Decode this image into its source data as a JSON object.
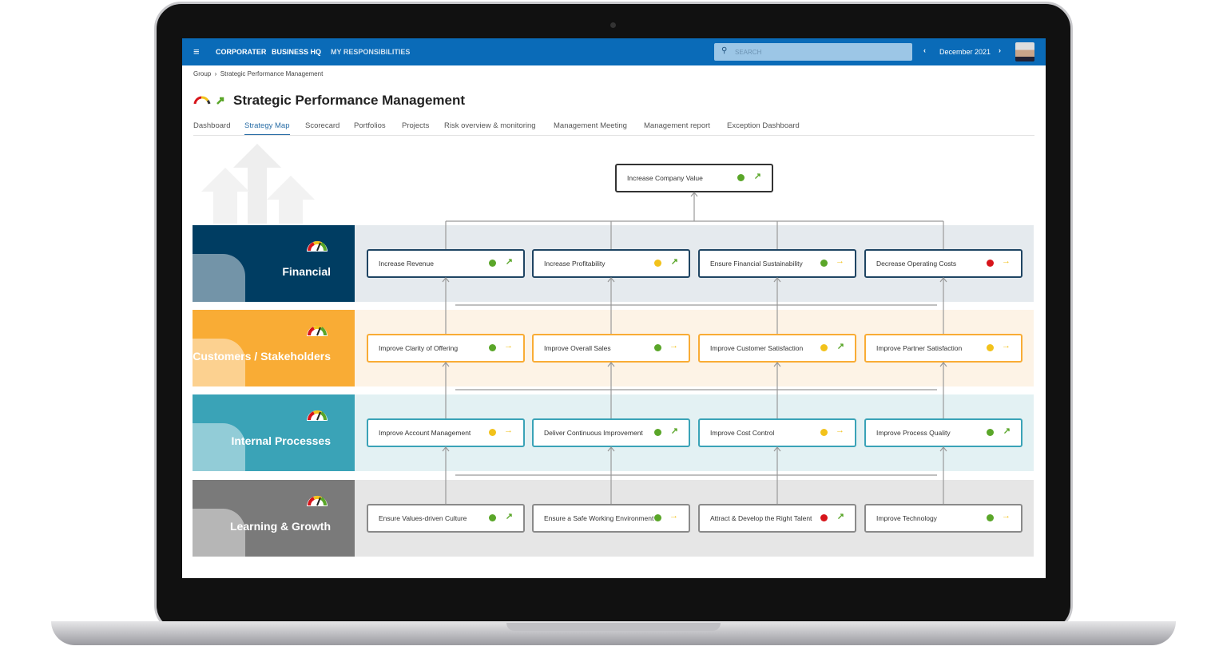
{
  "topbar": {
    "logo": "CORPORATER",
    "nav": [
      "BUSINESS HQ",
      "MY RESPONSIBILITIES"
    ],
    "search_placeholder": "SEARCH",
    "period": "December 2021",
    "prev": "‹",
    "next": "›"
  },
  "breadcrumb": [
    "Group",
    "Strategic Performance Management"
  ],
  "page": {
    "title": "Strategic Performance Management"
  },
  "tabs": [
    "Dashboard",
    "Strategy Map",
    "Scorecard",
    "Portfolios",
    "Projects",
    "Risk overview & monitoring",
    "Management Meeting",
    "Management report",
    "Exception Dashboard"
  ],
  "active_tab": "Strategy Map",
  "colors": {
    "green": "#5aa629",
    "yellow": "#f2c21b",
    "red": "#d7141a",
    "brand": "#0a6bb8"
  },
  "goal": {
    "label": "Increase Company Value",
    "status": "green",
    "trend": "up"
  },
  "perspectives": [
    {
      "name": "Financial",
      "color": "#003d62",
      "band": "#e5eaee",
      "border": "#1f4563",
      "objectives": [
        {
          "label": "Increase Revenue",
          "status": "green",
          "trend": "up"
        },
        {
          "label": "Increase Profitability",
          "status": "yellow",
          "trend": "up"
        },
        {
          "label": "Ensure Financial Sustainability",
          "status": "green",
          "trend": "right"
        },
        {
          "label": "Decrease Operating Costs",
          "status": "red",
          "trend": "right"
        }
      ]
    },
    {
      "name": "Customers / Stakeholders",
      "color": "#f9ac35",
      "band": "#fdf3e6",
      "border": "#f9ac35",
      "objectives": [
        {
          "label": "Improve Clarity of Offering",
          "status": "green",
          "trend": "right"
        },
        {
          "label": "Improve Overall Sales",
          "status": "green",
          "trend": "right"
        },
        {
          "label": "Improve Customer Satisfaction",
          "status": "yellow",
          "trend": "up"
        },
        {
          "label": "Improve Partner Satisfaction",
          "status": "yellow",
          "trend": "right"
        }
      ]
    },
    {
      "name": "Internal Processes",
      "color": "#3aa3b7",
      "band": "#e3f1f3",
      "border": "#3aa3b7",
      "objectives": [
        {
          "label": "Improve Account Management",
          "status": "yellow",
          "trend": "right"
        },
        {
          "label": "Deliver Continuous Improvement",
          "status": "green",
          "trend": "up"
        },
        {
          "label": "Improve Cost Control",
          "status": "yellow",
          "trend": "right"
        },
        {
          "label": "Improve Process Quality",
          "status": "green",
          "trend": "up"
        }
      ]
    },
    {
      "name": "Learning & Growth",
      "color": "#7a7a7a",
      "band": "#e6e6e6",
      "border": "#8a8a8a",
      "objectives": [
        {
          "label": "Ensure Values-driven Culture",
          "status": "green",
          "trend": "up"
        },
        {
          "label": "Ensure a Safe Working Environment",
          "status": "green",
          "trend": "right"
        },
        {
          "label": "Attract & Develop the Right Talent",
          "status": "red",
          "trend": "up"
        },
        {
          "label": "Improve Technology",
          "status": "green",
          "trend": "right"
        }
      ]
    }
  ]
}
